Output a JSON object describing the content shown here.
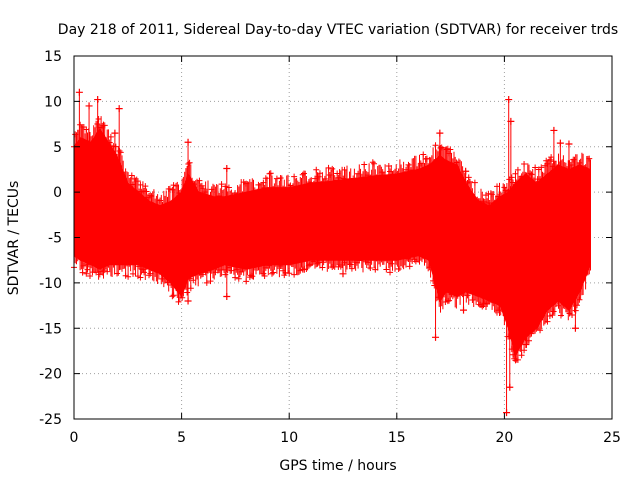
{
  "chart_data": {
    "type": "scatter",
    "title": "Day 218 of 2011, Sidereal Day-to-day VTEC variation (SDTVAR) for receiver trds",
    "xlabel": "GPS time / hours",
    "ylabel": "SDTVAR / TECUs",
    "xlim": [
      0,
      25
    ],
    "ylim": [
      -25,
      15
    ],
    "xticks": [
      0,
      5,
      10,
      15,
      20,
      25
    ],
    "xtick_labels": [
      "0",
      "5",
      "10",
      "15",
      "20",
      "25"
    ],
    "yticks": [
      -25,
      -20,
      -15,
      -10,
      -5,
      0,
      5,
      10,
      15
    ],
    "ytick_labels": [
      "-25",
      "-20",
      "-15",
      "-10",
      "-5",
      "0",
      "5",
      "10",
      "15"
    ],
    "grid": true,
    "legend": "none",
    "marker": "+",
    "series": [
      {
        "name": "SDTVAR",
        "color": "#ff0000",
        "envelope": {
          "x": [
            0.0,
            0.3,
            0.8,
            1.2,
            1.6,
            2.0,
            2.5,
            3.0,
            3.5,
            4.0,
            4.5,
            5.0,
            5.3,
            5.8,
            6.5,
            7.0,
            8.0,
            9.0,
            10.0,
            11.0,
            12.0,
            13.0,
            14.0,
            15.0,
            16.0,
            16.5,
            17.0,
            17.3,
            17.8,
            18.2,
            18.8,
            19.3,
            19.8,
            20.2,
            20.5,
            21.0,
            21.5,
            22.0,
            22.5,
            23.0,
            23.5,
            24.0
          ],
          "upper": [
            5.0,
            6.0,
            5.5,
            7.0,
            5.5,
            4.0,
            1.0,
            0.0,
            -1.0,
            -1.5,
            -1.0,
            0.0,
            2.0,
            0.0,
            -0.5,
            -0.5,
            0.0,
            0.5,
            0.5,
            1.0,
            1.2,
            1.5,
            1.8,
            2.0,
            2.5,
            3.0,
            4.0,
            3.5,
            3.0,
            1.0,
            -1.0,
            -1.5,
            -0.5,
            0.0,
            1.0,
            2.0,
            1.0,
            2.0,
            3.0,
            2.5,
            3.0,
            2.5
          ],
          "lower": [
            -7.0,
            -7.5,
            -8.0,
            -8.5,
            -8.0,
            -8.0,
            -8.0,
            -8.0,
            -8.5,
            -9.0,
            -10.0,
            -11.5,
            -9.5,
            -9.0,
            -8.5,
            -8.0,
            -8.5,
            -8.0,
            -8.0,
            -7.5,
            -7.5,
            -7.5,
            -7.5,
            -7.5,
            -7.0,
            -7.5,
            -12.0,
            -11.0,
            -11.5,
            -11.0,
            -11.5,
            -12.0,
            -12.5,
            -15.0,
            -18.0,
            -16.0,
            -15.0,
            -13.0,
            -12.0,
            -13.0,
            -11.0,
            -8.0
          ]
        },
        "outliers": [
          {
            "x": 0.25,
            "y": 11.0
          },
          {
            "x": 0.7,
            "y": 9.5
          },
          {
            "x": 1.1,
            "y": 10.2
          },
          {
            "x": 2.1,
            "y": 9.2
          },
          {
            "x": 1.9,
            "y": 6.5
          },
          {
            "x": 5.3,
            "y": 5.5
          },
          {
            "x": 7.1,
            "y": 2.6
          },
          {
            "x": 17.0,
            "y": 6.5
          },
          {
            "x": 18.2,
            "y": 2.3
          },
          {
            "x": 20.2,
            "y": 10.2
          },
          {
            "x": 20.3,
            "y": 7.8
          },
          {
            "x": 22.3,
            "y": 6.8
          },
          {
            "x": 22.6,
            "y": 5.4
          },
          {
            "x": 23.0,
            "y": 5.3
          },
          {
            "x": 20.1,
            "y": -24.3
          },
          {
            "x": 20.25,
            "y": -21.5
          },
          {
            "x": 16.8,
            "y": -16.0
          },
          {
            "x": 18.1,
            "y": -13.0
          },
          {
            "x": 7.1,
            "y": -11.5
          },
          {
            "x": 5.3,
            "y": -12.0
          },
          {
            "x": 21.0,
            "y": -16.8
          },
          {
            "x": 23.3,
            "y": -15.0
          },
          {
            "x": 3.2,
            "y": -8.5
          },
          {
            "x": 10.7,
            "y": -8.5
          },
          {
            "x": 12.5,
            "y": -9.0
          }
        ]
      }
    ]
  }
}
